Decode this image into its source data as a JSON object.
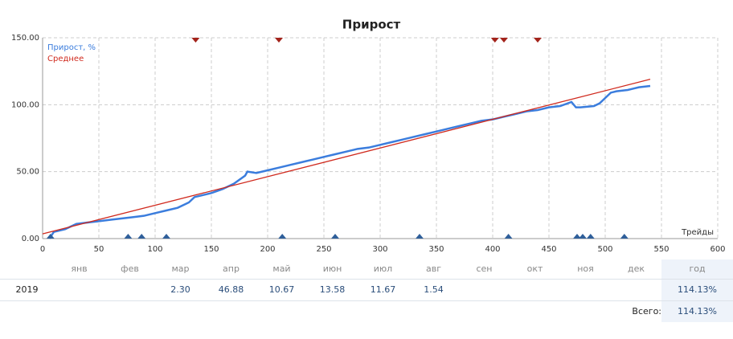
{
  "chart_data": {
    "type": "line",
    "title": "Прирост",
    "xlabel": "Трейды",
    "xlim": [
      0,
      600
    ],
    "xticks": [
      0,
      50,
      100,
      150,
      200,
      250,
      300,
      350,
      400,
      450,
      500,
      550,
      600
    ],
    "ylim": [
      0,
      150
    ],
    "yticks": [
      {
        "value": 0,
        "label": "0.00"
      },
      {
        "value": 50,
        "label": "50.00"
      },
      {
        "value": 100,
        "label": "100.00"
      },
      {
        "value": 150,
        "label": "150.00"
      }
    ],
    "grid": true,
    "series": [
      {
        "name": "Прирост, %",
        "color": "#3b7ddd",
        "x": [
          6,
          10,
          20,
          25,
          30,
          40,
          50,
          60,
          70,
          80,
          90,
          100,
          110,
          120,
          130,
          135,
          140,
          150,
          160,
          170,
          180,
          182,
          190,
          200,
          210,
          220,
          230,
          240,
          250,
          260,
          270,
          280,
          290,
          300,
          310,
          320,
          330,
          340,
          350,
          360,
          370,
          380,
          390,
          400,
          410,
          420,
          430,
          440,
          450,
          460,
          470,
          474,
          478,
          490,
          495,
          500,
          505,
          510,
          520,
          525,
          530,
          540
        ],
        "values": [
          0,
          5,
          7,
          9,
          11,
          12,
          13,
          14,
          15,
          16,
          17,
          19,
          21,
          23,
          27,
          31,
          32,
          34,
          37,
          41,
          47,
          50,
          49,
          51,
          53,
          55,
          57,
          59,
          61,
          63,
          65,
          67,
          68,
          70,
          72,
          74,
          76,
          78,
          80,
          82,
          84,
          86,
          88,
          89,
          91,
          93,
          95,
          96,
          98,
          99,
          102,
          98,
          98,
          99,
          101,
          105,
          109,
          110,
          111,
          112,
          113,
          114
        ]
      },
      {
        "name": "Среднее",
        "color": "#d02a1e",
        "x": [
          0,
          540
        ],
        "values": [
          3.5,
          119
        ]
      }
    ],
    "markers": [
      {
        "position": "top",
        "color": "#a3231b",
        "x": [
          136,
          210,
          402,
          410,
          440
        ]
      },
      {
        "position": "bottom",
        "color": "#2f5f9a",
        "x": [
          7,
          76,
          88,
          110,
          213,
          260,
          335,
          414,
          475,
          480,
          487,
          517
        ]
      }
    ]
  },
  "table": {
    "header": [
      null,
      "янв",
      "фев",
      "мар",
      "апр",
      "май",
      "июн",
      "июл",
      "авг",
      "сен",
      "окт",
      "ноя",
      "дек",
      "год"
    ],
    "rows": [
      [
        "2019",
        null,
        null,
        "2.30",
        "46.88",
        "10.67",
        "13.58",
        "11.67",
        "1.54",
        null,
        null,
        null,
        null,
        "114.13%"
      ]
    ],
    "total": {
      "label": "Всего:",
      "value": "114.13%"
    }
  }
}
